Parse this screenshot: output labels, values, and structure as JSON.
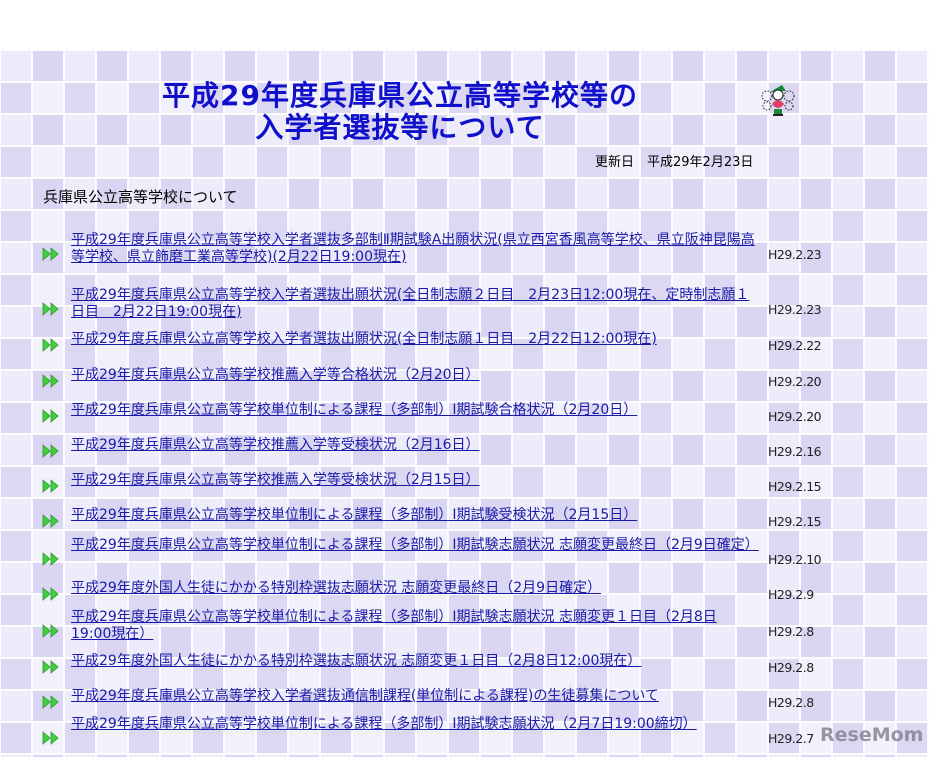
{
  "header": {
    "title_line1": "平成29年度兵庫県公立高等学校等の",
    "title_line2": "入学者選抜等について",
    "updated": "更新日　平成29年2月23日"
  },
  "section_title": "兵庫県公立高等学校について",
  "accent_color": "#1a1aa8",
  "items": [
    {
      "title": "平成29年度兵庫県公立高等学校入学者選抜多部制Ⅱ期試験A出願状況(県立西宮香風高等学校、県立阪神昆陽高等学校、県立飾磨工業高等学校)(2月22日19:00現在)",
      "date": "H29.2.23"
    },
    {
      "title": "平成29年度兵庫県公立高等学校入学者選抜出願状況(全日制志願２日目　2月23日12:00現在、定時制志願１日目　2月22日19:00現在)",
      "date": "H29.2.23"
    },
    {
      "title": "平成29年度兵庫県公立高等学校入学者選抜出願状況(全日制志願１日目　2月22日12:00現在)",
      "date": "H29.2.22"
    },
    {
      "title": "平成29年度兵庫県公立高等学校推薦入学等合格状況（2月20日）",
      "date": "H29.2.20"
    },
    {
      "title": "平成29年度兵庫県公立高等学校単位制による課程（多部制）Ⅰ期試験合格状況（2月20日）",
      "date": "H29.2.20"
    },
    {
      "title": "平成29年度兵庫県公立高等学校推薦入学等受検状況（2月16日）",
      "date": "H29.2.16"
    },
    {
      "title": "平成29年度兵庫県公立高等学校推薦入学等受検状況（2月15日）",
      "date": "H29.2.15"
    },
    {
      "title": "平成29年度兵庫県公立高等学校単位制による課程（多部制）Ⅰ期試験受検状況（2月15日）",
      "date": "H29.2.15"
    },
    {
      "title": "平成29年度兵庫県公立高等学校単位制による課程（多部制）Ⅰ期試験志願状況 志願変更最終日（2月9日確定）",
      "date": "H29.2.10"
    },
    {
      "title": "平成29年度外国人生徒にかかる特別枠選抜志願状況 志願変更最終日（2月9日確定）",
      "date": "H29.2.9"
    },
    {
      "title": "平成29年度兵庫県公立高等学校単位制による課程（多部制）Ⅰ期試験志願状況 志願変更１日目（2月8日19:00現在）",
      "date": "H29.2.8"
    },
    {
      "title": "平成29年度外国人生徒にかかる特別枠選抜志願状況 志願変更１日目（2月8日12:00現在）",
      "date": "H29.2.8"
    },
    {
      "title": "平成29年度兵庫県公立高等学校入学者選抜通信制課程(単位制による課程)の生徒募集について",
      "date": "H29.2.8"
    },
    {
      "title": "平成29年度兵庫県公立高等学校単位制による課程（多部制）Ⅰ期試験志願状況（2月7日19:00締切）",
      "date": "H29.2.7"
    }
  ],
  "watermark": "ReseMom"
}
